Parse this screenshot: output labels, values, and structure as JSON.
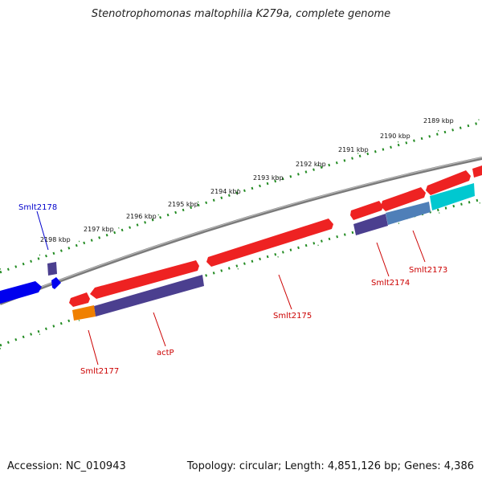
{
  "title": "Stenotrophomonas maltophilia K279a, complete genome",
  "footer": {
    "accession": "Accession: NC_010943",
    "summary": "Topology: circular; Length: 4,851,126 bp; Genes: 4,386"
  },
  "colors": {
    "backbone": "#888888",
    "dots": "#228b22",
    "forward_cds": "#ee2222",
    "reverse_cds": "#4b3f8f",
    "forward_label": "#cc0000",
    "reverse_label": "#0000cc",
    "orange_gene": "#f08000",
    "cyan_gene": "#00c8d0",
    "steel_gene": "#4f7fb8",
    "blue_gene": "#0000ee"
  },
  "ticks": [
    "2189 kbp",
    "2190 kbp",
    "2191 kbp",
    "2192 kbp",
    "2193 kbp",
    "2194 kbp",
    "2195 kbp",
    "2196 kbp",
    "2197 kbp",
    "2198 kbp"
  ],
  "gene_labels": [
    {
      "name": "Smlt2178",
      "color": "reverse"
    },
    {
      "name": "Smlt2177",
      "color": "forward"
    },
    {
      "name": "actP",
      "color": "forward"
    },
    {
      "name": "Smlt2175",
      "color": "forward"
    },
    {
      "name": "Smlt2174",
      "color": "forward"
    },
    {
      "name": "Smlt2173",
      "color": "forward"
    }
  ]
}
